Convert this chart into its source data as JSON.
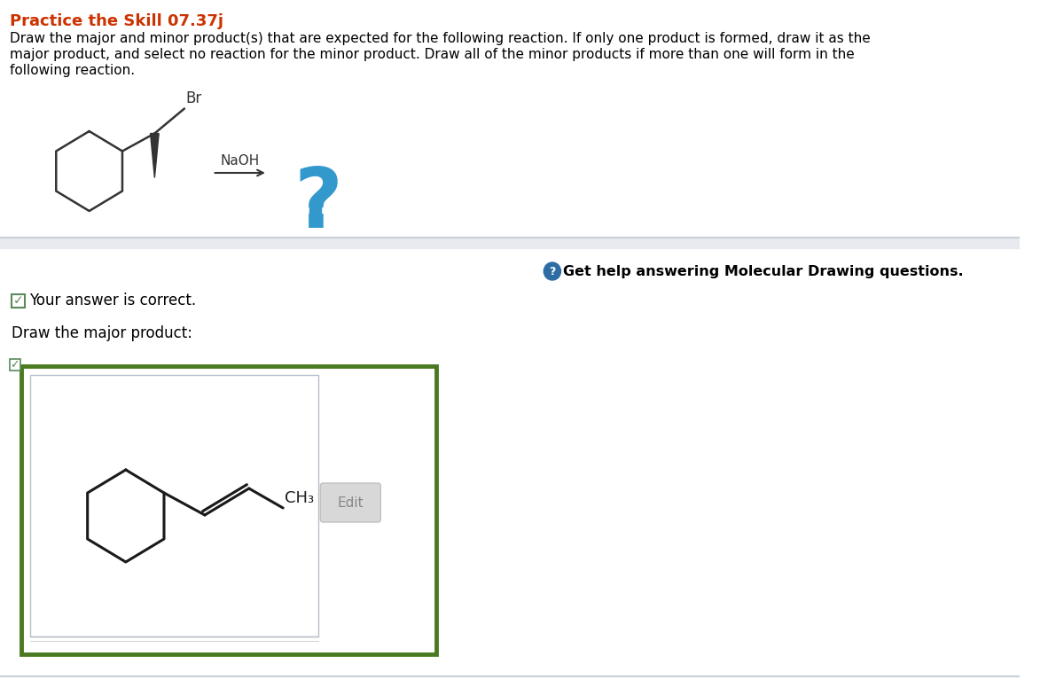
{
  "title": "Practice the Skill 07.37j",
  "title_color": "#cc3300",
  "body_text_line1": "Draw the major and minor product(s) that are expected for the following reaction. If only one product is formed, draw it as the",
  "body_text_line2": "major product, and select no reaction for the minor product. Draw all of the minor products if more than one will form in the",
  "body_text_line3": "following reaction.",
  "background_color": "#ffffff",
  "text_color": "#000000",
  "divider_color": "#c8d0d8",
  "divider2_color": "#e8eaf0",
  "help_text": "Get help answering Molecular Drawing questions.",
  "help_icon_color": "#2e6da4",
  "correct_text": "Your answer is correct.",
  "checkbox_color": "#5a8a5a",
  "major_label": "Draw the major product:",
  "edit_button_text": "Edit",
  "edit_button_color": "#d8d8d8",
  "edit_button_text_color": "#888888",
  "product_box_border_color": "#4a7a20",
  "inner_box_border_color": "#b8c0c8",
  "inner_box_bg": "#f0f4f8",
  "ch3_label": "CH₃",
  "naoh_label": "NaOH",
  "br_label": "Br",
  "question_mark_color": "#3399cc"
}
